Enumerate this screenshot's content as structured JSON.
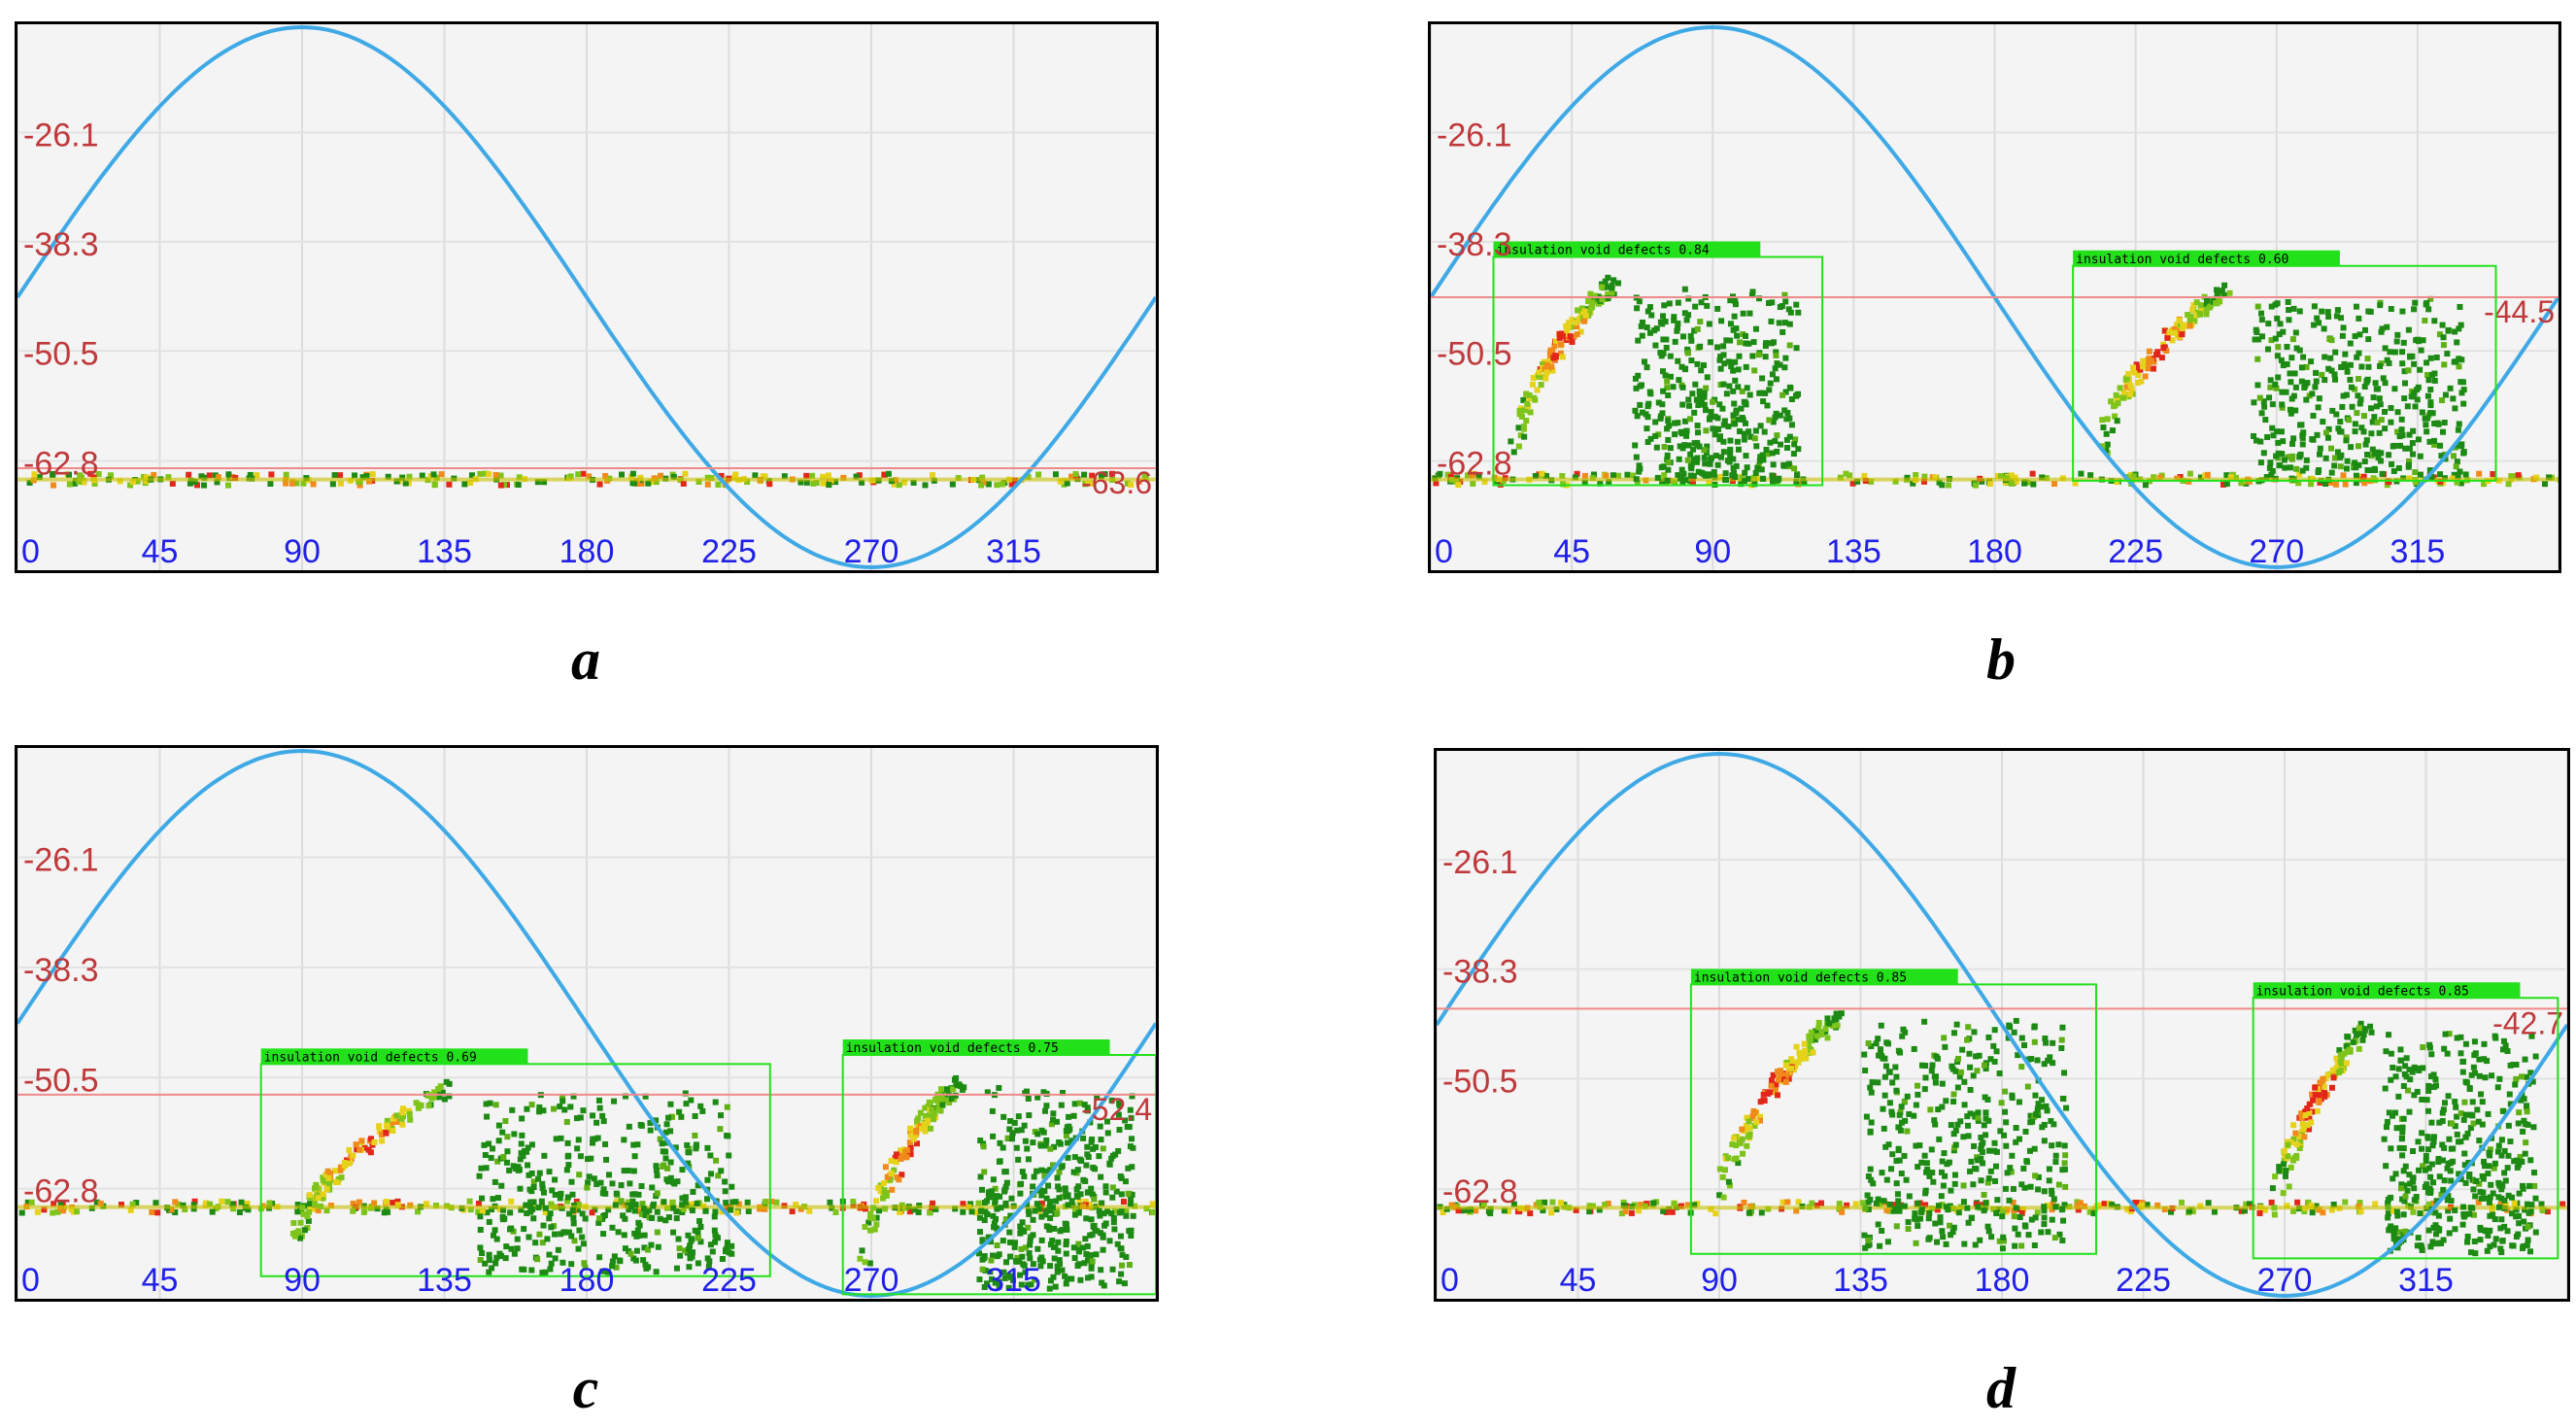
{
  "chart_data": [
    {
      "type": "scatter",
      "panel_label": "a",
      "y_ticks": [
        "-26.1",
        "-38.3",
        "-50.5",
        "-62.8"
      ],
      "x_ticks": [
        "0",
        "45",
        "90",
        "135",
        "180",
        "225",
        "270",
        "315"
      ],
      "x_range": [
        0,
        360
      ],
      "y_range": [
        -14,
        -75
      ],
      "threshold_value": -63.6,
      "threshold_label": "-63.6",
      "reference_wave": "sine",
      "wave_peak_phase": 90,
      "grid": true,
      "noise_floor": -62.8,
      "detections": [],
      "colors": {
        "wave": "#3fa9e6",
        "threshold": "#f08a8a",
        "box": "#22e11a",
        "tick_y": "#c0393b",
        "tick_x": "#2020e8",
        "dot": "#1d8a14"
      }
    },
    {
      "type": "scatter",
      "panel_label": "b",
      "y_ticks": [
        "-26.1",
        "-38.3",
        "-50.5",
        "-62.8"
      ],
      "x_ticks": [
        "0",
        "45",
        "90",
        "135",
        "180",
        "225",
        "270",
        "315"
      ],
      "x_range": [
        0,
        360
      ],
      "y_range": [
        -14,
        -75
      ],
      "threshold_value": -44.5,
      "threshold_label": "-44.5",
      "reference_wave": "sine",
      "wave_peak_phase": 90,
      "grid": true,
      "noise_floor": -62.8,
      "detections": [
        {
          "label": "insulation void defects 0.84",
          "x_from": 20,
          "x_to": 125,
          "y_top": -40.0,
          "y_bottom": -65.5
        },
        {
          "label": "insulation void defects 0.60",
          "x_from": 205,
          "x_to": 340,
          "y_top": -41.0,
          "y_bottom": -65.0
        }
      ],
      "colors": {
        "wave": "#3fa9e6",
        "threshold": "#f08a8a",
        "box": "#22e11a",
        "tick_y": "#c0393b",
        "tick_x": "#2020e8",
        "dot": "#1d8a14"
      }
    },
    {
      "type": "scatter",
      "panel_label": "c",
      "y_ticks": [
        "-26.1",
        "-38.3",
        "-50.5",
        "-62.8"
      ],
      "x_ticks": [
        "0",
        "45",
        "90",
        "135",
        "180",
        "225",
        "270",
        "315"
      ],
      "x_range": [
        0,
        360
      ],
      "y_range": [
        -14,
        -75
      ],
      "threshold_value": -52.4,
      "threshold_label": "-52.4",
      "reference_wave": "sine",
      "wave_peak_phase": 90,
      "grid": true,
      "noise_floor": -62.8,
      "detections": [
        {
          "label": "insulation void defects 0.69",
          "x_from": 77,
          "x_to": 238,
          "y_top": -49.0,
          "y_bottom": -72.5
        },
        {
          "label": "insulation void defects 0.75",
          "x_from": 261,
          "x_to": 360,
          "y_top": -48.0,
          "y_bottom": -74.5
        }
      ],
      "colors": {
        "wave": "#3fa9e6",
        "threshold": "#f08a8a",
        "box": "#22e11a",
        "tick_y": "#c0393b",
        "tick_x": "#2020e8",
        "dot": "#1d8a14"
      }
    },
    {
      "type": "scatter",
      "panel_label": "d",
      "y_ticks": [
        "-26.1",
        "-38.3",
        "-50.5",
        "-62.8"
      ],
      "x_ticks": [
        "0",
        "45",
        "90",
        "135",
        "180",
        "225",
        "270",
        "315"
      ],
      "x_range": [
        0,
        360
      ],
      "y_range": [
        -14,
        -75
      ],
      "threshold_value": -42.7,
      "threshold_label": "-42.7",
      "reference_wave": "sine",
      "wave_peak_phase": 90,
      "grid": true,
      "noise_floor": -62.8,
      "detections": [
        {
          "label": "insulation void defects 0.85",
          "x_from": 81,
          "x_to": 210,
          "y_top": -40.0,
          "y_bottom": -70.0
        },
        {
          "label": "insulation void defects 0.85",
          "x_from": 260,
          "x_to": 357,
          "y_top": -41.5,
          "y_bottom": -70.5
        }
      ],
      "colors": {
        "wave": "#3fa9e6",
        "threshold": "#f08a8a",
        "box": "#22e11a",
        "tick_y": "#c0393b",
        "tick_x": "#2020e8",
        "dot": "#1d8a14"
      }
    }
  ]
}
